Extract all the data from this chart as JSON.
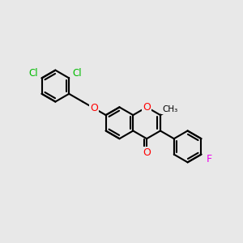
{
  "bg_color": "#e8e8e8",
  "bond_color": "#000000",
  "bond_width": 1.5,
  "atom_colors": {
    "O": "#ff0000",
    "Cl": "#00bb00",
    "F": "#ee00ee",
    "C": "#000000"
  },
  "font_size": 9,
  "fig_size": [
    3.0,
    3.0
  ],
  "dpi": 100
}
